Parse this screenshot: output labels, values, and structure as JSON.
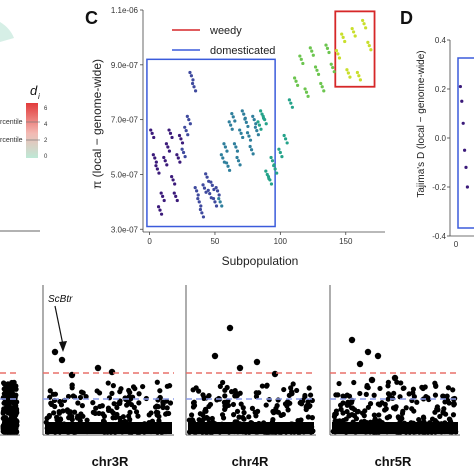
{
  "colors": {
    "weedy_box": "#d62728",
    "domesticated_box": "#3b5bdb",
    "upper_line": "#e8706a",
    "lower_line": "#8c9be8",
    "manhattan_points": "#000000",
    "heat_high": "#e23b3b",
    "heat_low": "#9ee6c8",
    "palette": [
      "#3b1a7a",
      "#3f4a9e",
      "#2f7f9c",
      "#25a38a",
      "#6cc54f",
      "#c9df2c"
    ]
  },
  "left_panel": {
    "legend_symbol": "d",
    "legend_subscript": "i",
    "scale_ticks": [
      "6",
      "4",
      "2",
      "0"
    ],
    "percentile_labels": [
      "rcentile",
      "rcentile"
    ]
  },
  "panel_c": {
    "letter": "C",
    "legend": [
      {
        "label": "weedy",
        "color": "#d62728"
      },
      {
        "label": "domesticated",
        "color": "#3b5bdb"
      }
    ],
    "xlabel": "Subpopulation",
    "ylabel": "π (local − genome-wide)",
    "x_ticks": [
      "0",
      "50",
      "100",
      "150"
    ],
    "y_ticks": [
      "3.0e-07",
      "5.0e-07",
      "7.0e-07",
      "9.0e-07",
      "1.1e-06"
    ]
  },
  "panel_d": {
    "letter": "D",
    "ylabel": "Tajima's D (local − genome-wide)",
    "y_ticks": [
      "0.4",
      "0.2",
      "0.0",
      "-0.2",
      "-0.4"
    ],
    "x_ticks": [
      "0"
    ]
  },
  "manhattan": {
    "panels": [
      {
        "label": "",
        "annotation": ""
      },
      {
        "label": "chr3R",
        "annotation": "ScBtr"
      },
      {
        "label": "chr4R",
        "annotation": ""
      },
      {
        "label": "chr5R",
        "annotation": ""
      }
    ]
  },
  "chart_data": [
    {
      "type": "scatter",
      "panel": "C",
      "xlabel": "Subpopulation",
      "ylabel": "π (local − genome-wide)",
      "xlim": [
        -5,
        180
      ],
      "ylim": [
        2.9e-07,
        1.1e-06
      ],
      "series": [
        {
          "name": "domesticated",
          "x": [
            2,
            4,
            6,
            8,
            10,
            12,
            14,
            16,
            18,
            20,
            22,
            24,
            26,
            28,
            30,
            32,
            34,
            36,
            38,
            40,
            42,
            44,
            46,
            48,
            50,
            52,
            54,
            56,
            58,
            60,
            62,
            64,
            66,
            68,
            70,
            72,
            74,
            76,
            78,
            80,
            82,
            84,
            86,
            88,
            90,
            92,
            94
          ],
          "y": [
            6.5e-07,
            5.6e-07,
            5.2e-07,
            3.7e-07,
            4.2e-07,
            5.5e-07,
            6e-07,
            6.5e-07,
            4.8e-07,
            4.2e-07,
            5.6e-07,
            6.3e-07,
            5.8e-07,
            6.6e-07,
            7e-07,
            8.6e-07,
            8.2e-07,
            4.4e-07,
            4e-07,
            3.6e-07,
            4.5e-07,
            4.9e-07,
            4.3e-07,
            4.6e-07,
            4e-07,
            4.4e-07,
            4e-07,
            5.6e-07,
            6e-07,
            5.3e-07,
            6.8e-07,
            7.1e-07,
            6e-07,
            5.5e-07,
            6.5e-07,
            7.2e-07,
            6.9e-07,
            6.4e-07,
            5.9e-07,
            7e-07,
            6.6e-07,
            6.8e-07,
            7.2e-07,
            7e-07,
            5e-07,
            4.8e-07,
            5.5e-07
          ]
        },
        {
          "name": "weedy",
          "x": [
            96,
            100,
            104,
            108,
            112,
            116,
            120,
            124,
            128,
            132,
            136,
            140,
            144,
            148,
            152,
            156,
            160,
            164,
            168
          ],
          "y": [
            5.2e-07,
            5.8e-07,
            6.3e-07,
            7.6e-07,
            8.4e-07,
            9.2e-07,
            8e-07,
            9.5e-07,
            8.8e-07,
            8.2e-07,
            9.6e-07,
            8.9e-07,
            9.4e-07,
            1e-06,
            8.7e-07,
            1.02e-06,
            8.6e-07,
            1.05e-06,
            9.7e-07
          ]
        }
      ]
    },
    {
      "type": "scatter",
      "panel": "D",
      "ylabel": "Tajima's D (local − genome-wide)",
      "ylim": [
        -0.4,
        0.4
      ],
      "series": [
        {
          "name": "",
          "x": [
            1,
            2,
            3,
            4,
            5,
            6
          ],
          "y": [
            0.21,
            0.15,
            0.06,
            -0.05,
            -0.12,
            -0.2
          ]
        }
      ]
    },
    {
      "type": "scatter",
      "panel": "manhattan",
      "xlabel": "",
      "ylabel": "",
      "series": [
        {
          "name": "chr3R",
          "threshold_upper": 0.7,
          "threshold_lower": 0.45
        },
        {
          "name": "chr4R",
          "threshold_upper": 0.7,
          "threshold_lower": 0.45
        },
        {
          "name": "chr5R",
          "threshold_upper": 0.7,
          "threshold_lower": 0.45
        }
      ]
    }
  ]
}
